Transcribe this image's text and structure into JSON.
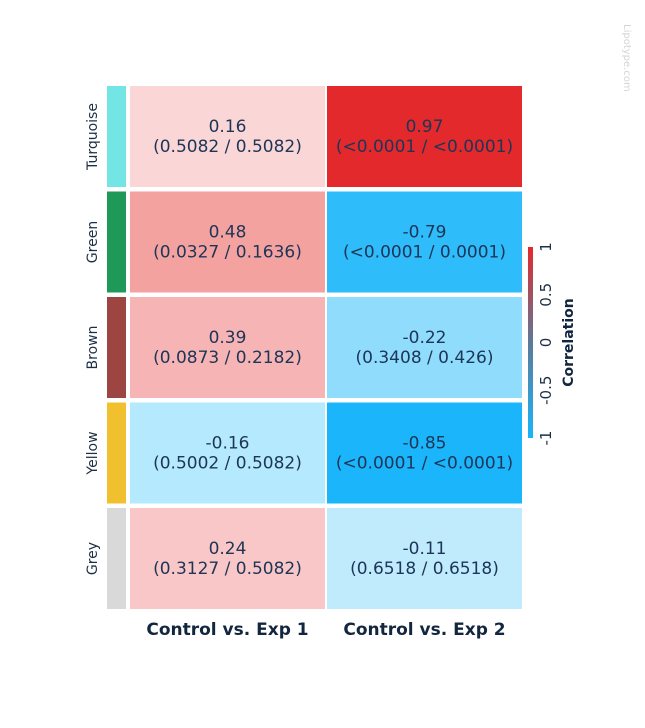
{
  "watermark": "Lipotype.com",
  "chart_data": {
    "type": "heatmap",
    "columns": [
      "Control vs. Exp 1",
      "Control vs. Exp 2"
    ],
    "rows": [
      {
        "label": "Turquoise",
        "color": "#74e5e5",
        "cells": [
          {
            "correlation": 0.16,
            "pvalues": "(0.5082 / 0.5082)",
            "fill": "#fad6d6"
          },
          {
            "correlation": 0.97,
            "pvalues": "(<0.0001 / <0.0001)",
            "fill": "#e3292b"
          }
        ]
      },
      {
        "label": "Green",
        "color": "#1e9958",
        "cells": [
          {
            "correlation": 0.48,
            "pvalues": "(0.0327 / 0.1636)",
            "fill": "#f4a2a0"
          },
          {
            "correlation": -0.79,
            "pvalues": "(<0.0001 / 0.0001)",
            "fill": "#2ebcfb"
          }
        ]
      },
      {
        "label": "Brown",
        "color": "#9c4541",
        "cells": [
          {
            "correlation": 0.39,
            "pvalues": "(0.0873 / 0.2182)",
            "fill": "#f6b4b4"
          },
          {
            "correlation": -0.22,
            "pvalues": "(0.3408 / 0.426)",
            "fill": "#8fdcfd"
          }
        ]
      },
      {
        "label": "Yellow",
        "color": "#f0c02f",
        "cells": [
          {
            "correlation": -0.16,
            "pvalues": "(0.5002 / 0.5082)",
            "fill": "#b5e9fd"
          },
          {
            "correlation": -0.85,
            "pvalues": "(<0.0001 / <0.0001)",
            "fill": "#1ab5fa"
          }
        ]
      },
      {
        "label": "Grey",
        "color": "#d9d9d9",
        "cells": [
          {
            "correlation": 0.24,
            "pvalues": "(0.3127 / 0.5082)",
            "fill": "#f9c7c7"
          },
          {
            "correlation": -0.11,
            "pvalues": "(0.6518 / 0.6518)",
            "fill": "#bfebfd"
          }
        ]
      }
    ],
    "colorbar": {
      "title": "Correlation",
      "range": [
        -1,
        1
      ],
      "ticks": [
        "-1",
        "-0.5",
        "0",
        "0.5",
        "1"
      ],
      "colors": {
        "low": "#1ab5fa",
        "mid": "#5c7a99",
        "high": "#e3292b"
      }
    }
  }
}
